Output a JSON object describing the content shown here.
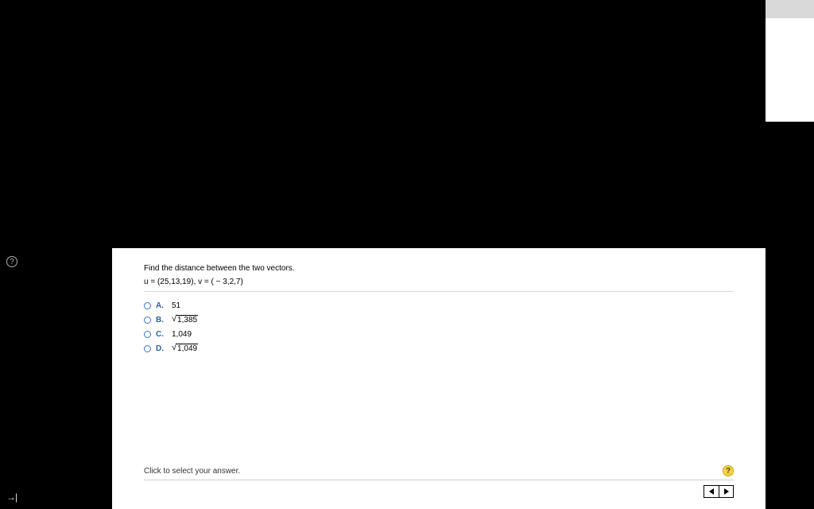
{
  "question": {
    "prompt": "Find the distance between the two vectors.",
    "vectors": "u = (25,13,19), v = ( − 3,2,7)"
  },
  "choices": {
    "A": {
      "letter": "A.",
      "text": "51"
    },
    "B": {
      "letter": "B.",
      "sqrt": "1,385"
    },
    "C": {
      "letter": "C.",
      "text": "1,049"
    },
    "D": {
      "letter": "D.",
      "sqrt": "1,049"
    }
  },
  "footer": {
    "hint": "Click to select your answer."
  },
  "icons": {
    "help": "?",
    "skip": "→|",
    "help_small": "?"
  },
  "colors": {
    "black": "#000000",
    "white": "#ffffff",
    "gray_tab": "#d9d9d9",
    "link_blue": "#2a5fa0",
    "radio_border": "#3a78c3",
    "divider": "#d8d8d8",
    "help_bg": "#f7d54a",
    "help_border": "#c9a20f"
  }
}
